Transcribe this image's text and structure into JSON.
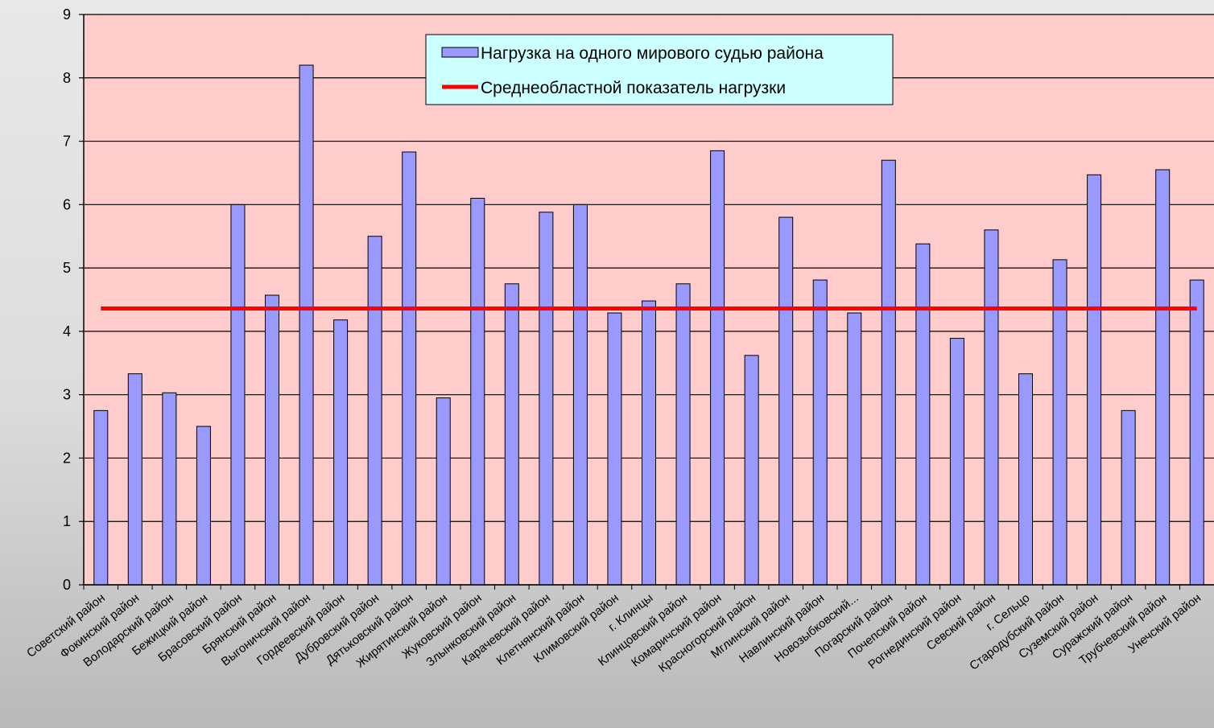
{
  "chart_data": {
    "type": "bar",
    "categories": [
      "Советский район",
      "Фокинский район",
      "Володарский район",
      "Бежицкий район",
      "Брасовский район",
      "Брянский район",
      "Выгоничский район",
      "Гордеевский район",
      "Дубровский район",
      "Дятьковский район",
      "Жирятинский район",
      "Жуковский район",
      "Злынковский район",
      "Карачевский район",
      "Клетнянский район",
      "Климовский район",
      "г. Клинцы",
      "Клинцовский район",
      "Комаричский район",
      "Красногорский район",
      "Мглинский район",
      "Навлинский район",
      "Новозыбковский...",
      "Погарский район",
      "Почепский район",
      "Рогнединский район",
      "Севский район",
      "г. Сельцо",
      "Стародубский район",
      "Суземский район",
      "Суражский район",
      "Трубчевский район",
      "Унечский район"
    ],
    "series": [
      {
        "name": "Нагрузка на одного мирового судью района",
        "color": "#9999ff",
        "values": [
          2.75,
          3.33,
          3.03,
          2.5,
          6.0,
          4.57,
          8.2,
          4.18,
          5.5,
          6.83,
          2.95,
          6.1,
          4.75,
          5.88,
          6.0,
          4.29,
          4.48,
          4.75,
          6.85,
          3.62,
          5.8,
          4.81,
          4.29,
          6.7,
          5.38,
          3.89,
          5.6,
          3.33,
          5.13,
          6.47,
          2.75,
          6.55,
          4.81
        ]
      },
      {
        "name": "Среднеобластной показатель нагрузки",
        "type": "line",
        "color": "#ff0000",
        "value": 4.36
      }
    ],
    "y_ticks": [
      "0",
      "1",
      "2",
      "3",
      "4",
      "5",
      "6",
      "7",
      "8",
      "9"
    ],
    "ylim": [
      0,
      9
    ],
    "grid": true,
    "plot_background": "#ffcccc",
    "legend_background": "#ccffff",
    "legend_position": "top-center"
  }
}
